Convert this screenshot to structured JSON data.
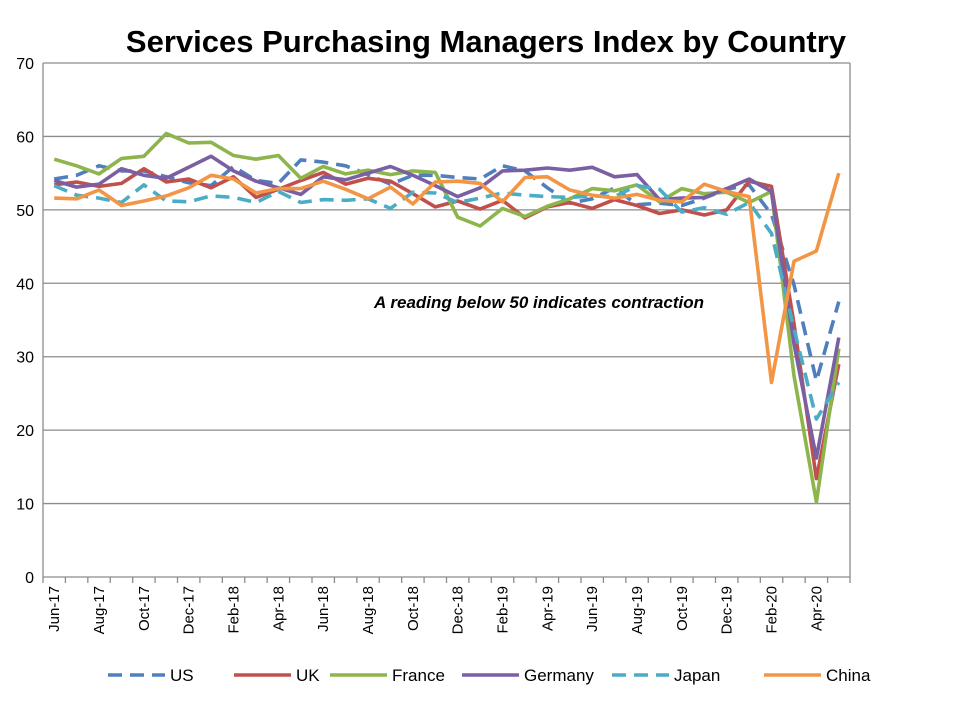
{
  "chart_data": {
    "type": "line",
    "title": "Services Purchasing Managers Index by Country",
    "xlabel": "",
    "ylabel": "",
    "ylim": [
      0,
      70
    ],
    "yticks": [
      0,
      10,
      20,
      30,
      40,
      50,
      60,
      70
    ],
    "grid": true,
    "legend_position": "bottom",
    "annotation": "A reading below 50 indicates contraction",
    "tick_labels": [
      "Jun-17",
      "Aug-17",
      "Oct-17",
      "Dec-17",
      "Feb-18",
      "Apr-18",
      "Jun-18",
      "Aug-18",
      "Oct-18",
      "Dec-18",
      "Feb-19",
      "Apr-19",
      "Jun-19",
      "Aug-19",
      "Oct-19",
      "Dec-19",
      "Feb-20",
      "Apr-20"
    ],
    "categories": [
      "Jun-17",
      "Jul-17",
      "Aug-17",
      "Sep-17",
      "Oct-17",
      "Nov-17",
      "Dec-17",
      "Jan-18",
      "Feb-18",
      "Mar-18",
      "Apr-18",
      "May-18",
      "Jun-18",
      "Jul-18",
      "Aug-18",
      "Sep-18",
      "Oct-18",
      "Nov-18",
      "Dec-18",
      "Jan-19",
      "Feb-19",
      "Mar-19",
      "Apr-19",
      "May-19",
      "Jun-19",
      "Jul-19",
      "Aug-19",
      "Sep-19",
      "Oct-19",
      "Nov-19",
      "Dec-19",
      "Jan-20",
      "Feb-20",
      "Mar-20",
      "Apr-20",
      "May-20"
    ],
    "series": [
      {
        "name": "US",
        "color": "#4f7fbd",
        "dash": "dashed",
        "values": [
          54.2,
          54.7,
          56.0,
          55.3,
          55.3,
          54.5,
          53.7,
          53.3,
          55.9,
          54.0,
          53.6,
          56.8,
          56.5,
          56.0,
          54.8,
          53.5,
          54.7,
          54.7,
          54.4,
          54.2,
          56.0,
          55.3,
          53.0,
          50.9,
          51.5,
          53.0,
          50.7,
          50.9,
          50.6,
          51.6,
          52.8,
          53.4,
          49.4,
          39.8,
          26.7,
          37.5
        ]
      },
      {
        "name": "UK",
        "color": "#c0504d",
        "dash": "solid",
        "values": [
          53.4,
          53.8,
          53.2,
          53.6,
          55.6,
          53.8,
          54.2,
          53.0,
          54.5,
          51.7,
          52.8,
          54.0,
          55.1,
          53.5,
          54.3,
          53.9,
          52.2,
          50.4,
          51.2,
          50.1,
          51.3,
          48.9,
          50.4,
          51.0,
          50.2,
          51.4,
          50.6,
          49.5,
          50.0,
          49.3,
          50.0,
          53.9,
          53.2,
          34.5,
          13.4,
          29.0
        ]
      },
      {
        "name": "France",
        "color": "#8db54c",
        "dash": "solid",
        "values": [
          56.9,
          56.0,
          54.9,
          57.0,
          57.3,
          60.4,
          59.1,
          59.2,
          57.4,
          56.9,
          57.4,
          54.3,
          55.9,
          54.9,
          55.4,
          54.8,
          55.3,
          55.1,
          49.0,
          47.8,
          50.2,
          49.1,
          50.5,
          51.5,
          52.9,
          52.6,
          53.4,
          51.1,
          52.9,
          52.2,
          52.4,
          51.0,
          52.5,
          27.4,
          10.2,
          31.1
        ]
      },
      {
        "name": "Germany",
        "color": "#7a60a2",
        "dash": "solid",
        "values": [
          54.0,
          53.1,
          53.5,
          55.6,
          54.7,
          54.3,
          55.8,
          57.3,
          55.3,
          53.9,
          53.0,
          52.1,
          54.5,
          54.1,
          55.0,
          55.9,
          54.7,
          53.3,
          51.8,
          53.0,
          55.3,
          55.4,
          55.7,
          55.4,
          55.8,
          54.5,
          54.8,
          51.4,
          51.6,
          51.7,
          52.9,
          54.2,
          52.5,
          31.7,
          16.2,
          32.6
        ]
      },
      {
        "name": "Japan",
        "color": "#4bacc6",
        "dash": "dashed",
        "values": [
          53.3,
          52.0,
          51.6,
          51.0,
          53.4,
          51.2,
          51.1,
          51.9,
          51.7,
          51.0,
          52.5,
          51.0,
          51.4,
          51.3,
          51.5,
          50.2,
          52.4,
          52.3,
          51.0,
          51.6,
          52.3,
          52.0,
          51.8,
          51.7,
          51.9,
          51.8,
          53.3,
          52.8,
          49.7,
          50.3,
          49.4,
          51.0,
          46.8,
          33.8,
          21.5,
          26.5
        ]
      },
      {
        "name": "China",
        "color": "#f29545",
        "dash": "solid",
        "values": [
          51.6,
          51.5,
          52.7,
          50.6,
          51.2,
          51.9,
          53.0,
          54.7,
          54.2,
          52.3,
          52.9,
          52.9,
          53.9,
          52.8,
          51.5,
          53.1,
          50.8,
          53.8,
          53.9,
          53.6,
          51.1,
          54.4,
          54.5,
          52.7,
          52.0,
          51.6,
          52.1,
          51.3,
          51.1,
          53.5,
          52.5,
          51.8,
          26.5,
          43.0,
          44.4,
          55.0
        ]
      }
    ]
  }
}
